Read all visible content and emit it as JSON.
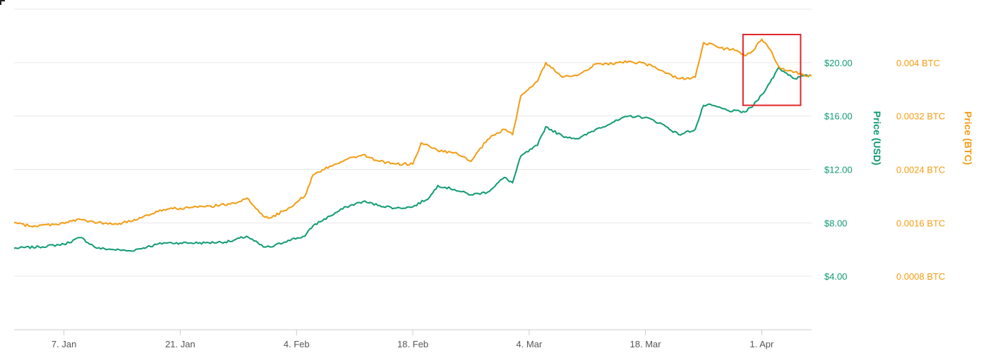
{
  "colors": {
    "usd": "#0f9a73",
    "btc": "#f39c12",
    "grid": "#e6e6e6",
    "axis": "#cccccc",
    "tick_text": "#555555",
    "highlight": "#e0242a"
  },
  "chart_data": {
    "type": "line",
    "title": "",
    "x_ticks": [
      "7. Jan",
      "21. Jan",
      "4. Feb",
      "18. Feb",
      "4. Mar",
      "18. Mar",
      "1. Apr"
    ],
    "x_range": [
      "2018-01-01",
      "2018-04-07"
    ],
    "y_axes": [
      {
        "name": "usd",
        "label": "Price (USD)",
        "ticks": [
          "$4.00",
          "$8.00",
          "$12.00",
          "$16.00",
          "$20.00"
        ],
        "tick_values": [
          4,
          8,
          12,
          16,
          20
        ],
        "range": [
          0,
          24
        ]
      },
      {
        "name": "btc",
        "label": "Price (BTC)",
        "ticks": [
          "0.0008 BTC",
          "0.0016 BTC",
          "0.0024 BTC",
          "0.0032 BTC",
          "0.004 BTC"
        ],
        "tick_values": [
          0.0008,
          0.0016,
          0.0024,
          0.0032,
          0.004
        ],
        "range": [
          0,
          0.0048
        ]
      }
    ],
    "grid": true,
    "legend": "none",
    "series": [
      {
        "axis": "usd",
        "x": [
          "2018-01-01",
          "2018-01-04",
          "2018-01-07",
          "2018-01-09",
          "2018-01-11",
          "2018-01-13",
          "2018-01-15",
          "2018-01-17",
          "2018-01-19",
          "2018-01-21",
          "2018-01-24",
          "2018-01-27",
          "2018-01-29",
          "2018-01-31",
          "2018-02-01",
          "2018-02-03",
          "2018-02-05",
          "2018-02-06",
          "2018-02-08",
          "2018-02-10",
          "2018-02-12",
          "2018-02-14",
          "2018-02-16",
          "2018-02-18",
          "2018-02-20",
          "2018-02-21",
          "2018-02-23",
          "2018-02-25",
          "2018-02-27",
          "2018-03-01",
          "2018-03-02",
          "2018-03-03",
          "2018-03-05",
          "2018-03-06",
          "2018-03-08",
          "2018-03-10",
          "2018-03-12",
          "2018-03-14",
          "2018-03-16",
          "2018-03-18",
          "2018-03-20",
          "2018-03-22",
          "2018-03-24",
          "2018-03-25",
          "2018-03-26",
          "2018-03-28",
          "2018-03-30",
          "2018-03-31",
          "2018-04-01",
          "2018-04-02",
          "2018-04-03",
          "2018-04-04",
          "2018-04-05",
          "2018-04-06",
          "2018-04-07"
        ],
        "y": [
          6.1,
          6.2,
          6.4,
          6.9,
          6.1,
          6.0,
          5.9,
          6.2,
          6.5,
          6.5,
          6.5,
          6.6,
          7.0,
          6.2,
          6.2,
          6.7,
          7.0,
          7.8,
          8.5,
          9.2,
          9.6,
          9.3,
          9.1,
          9.2,
          9.9,
          10.8,
          10.5,
          10.1,
          10.3,
          11.4,
          11.0,
          13.0,
          13.8,
          15.2,
          14.5,
          14.3,
          15.0,
          15.5,
          16.0,
          15.9,
          15.4,
          14.6,
          15.0,
          16.8,
          16.8,
          16.4,
          16.3,
          16.8,
          17.6,
          18.5,
          19.6,
          19.2,
          18.8,
          19.0,
          19.0
        ]
      },
      {
        "axis": "btc",
        "x": [
          "2018-01-01",
          "2018-01-03",
          "2018-01-06",
          "2018-01-09",
          "2018-01-11",
          "2018-01-13",
          "2018-01-15",
          "2018-01-17",
          "2018-01-19",
          "2018-01-21",
          "2018-01-24",
          "2018-01-27",
          "2018-01-29",
          "2018-01-31",
          "2018-02-01",
          "2018-02-03",
          "2018-02-05",
          "2018-02-06",
          "2018-02-08",
          "2018-02-10",
          "2018-02-12",
          "2018-02-14",
          "2018-02-16",
          "2018-02-18",
          "2018-02-19",
          "2018-02-21",
          "2018-02-23",
          "2018-02-25",
          "2018-02-27",
          "2018-03-01",
          "2018-03-02",
          "2018-03-03",
          "2018-03-05",
          "2018-03-06",
          "2018-03-08",
          "2018-03-10",
          "2018-03-12",
          "2018-03-14",
          "2018-03-16",
          "2018-03-18",
          "2018-03-20",
          "2018-03-22",
          "2018-03-24",
          "2018-03-25",
          "2018-03-27",
          "2018-03-29",
          "2018-03-30",
          "2018-03-31",
          "2018-04-01",
          "2018-04-02",
          "2018-04-03",
          "2018-04-04",
          "2018-04-05",
          "2018-04-06",
          "2018-04-07"
        ],
        "y": [
          0.0016,
          0.00155,
          0.00158,
          0.00165,
          0.0016,
          0.00158,
          0.00162,
          0.00172,
          0.0018,
          0.00182,
          0.00184,
          0.00188,
          0.00197,
          0.0017,
          0.00168,
          0.00182,
          0.002,
          0.00232,
          0.00245,
          0.00255,
          0.00262,
          0.00252,
          0.00248,
          0.00248,
          0.0028,
          0.00268,
          0.00265,
          0.00252,
          0.00285,
          0.003,
          0.00292,
          0.0035,
          0.00372,
          0.004,
          0.00378,
          0.00382,
          0.00398,
          0.00398,
          0.00402,
          0.00398,
          0.00388,
          0.00376,
          0.00378,
          0.0043,
          0.00422,
          0.00418,
          0.0041,
          0.00418,
          0.00435,
          0.0042,
          0.00395,
          0.00388,
          0.00386,
          0.00382,
          0.0038
        ]
      }
    ],
    "highlight_box": {
      "x_range": [
        "2018-03-30",
        "2018-04-05"
      ],
      "y_range_usd": [
        16.8,
        22.1
      ]
    }
  }
}
